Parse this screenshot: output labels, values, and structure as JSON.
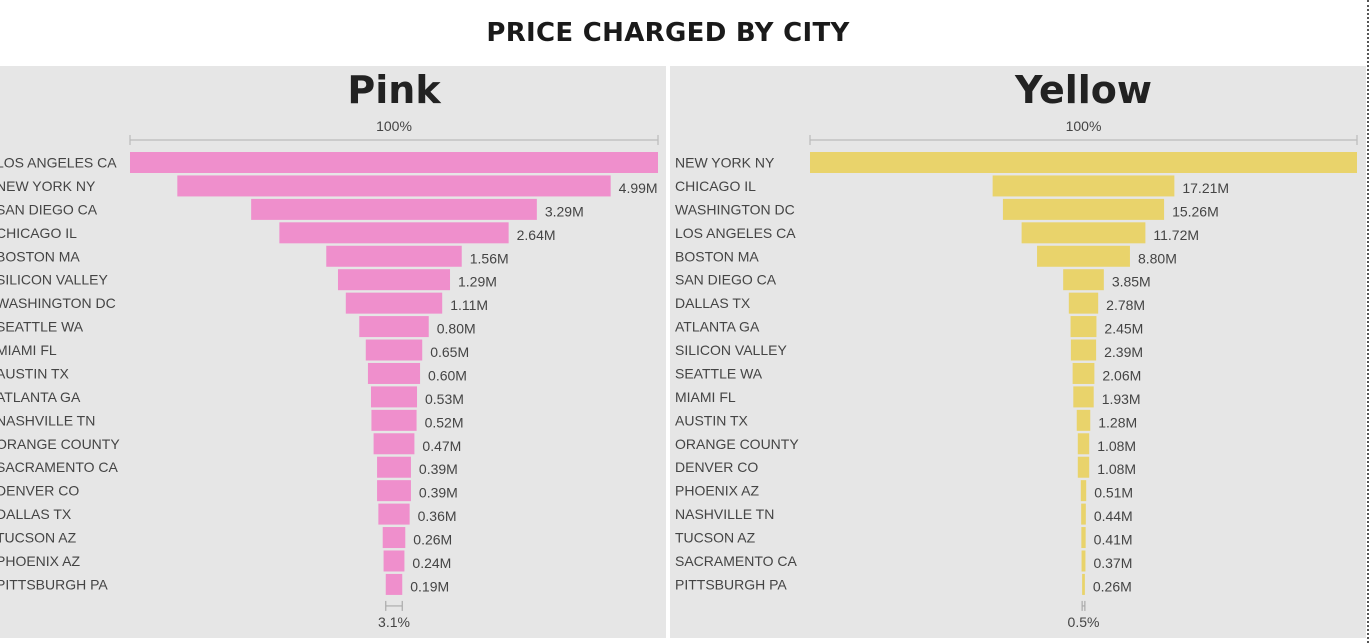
{
  "title": "PRICE CHARGED BY CITY",
  "chart_data": [
    {
      "type": "bar",
      "subtype": "funnel",
      "title": "Pink",
      "top_label": "100%",
      "bottom_label": "3.1%",
      "color": "#ef8fcc",
      "categories": [
        "LOS ANGELES CA",
        "NEW YORK NY",
        "SAN DIEGO CA",
        "CHICAGO IL",
        "BOSTON MA",
        "SILICON VALLEY",
        "WASHINGTON DC",
        "SEATTLE WA",
        "MIAMI FL",
        "AUSTIN TX",
        "ATLANTA GA",
        "NASHVILLE TN",
        "ORANGE COUNTY",
        "SACRAMENTO CA",
        "DENVER CO",
        "DALLAS TX",
        "TUCSON AZ",
        "PHOENIX AZ",
        "PITTSBURGH PA"
      ],
      "values": [
        6.08,
        4.99,
        3.29,
        2.64,
        1.56,
        1.29,
        1.11,
        0.8,
        0.65,
        0.6,
        0.53,
        0.52,
        0.47,
        0.39,
        0.39,
        0.36,
        0.26,
        0.24,
        0.19
      ],
      "value_labels": [
        "",
        "4.99M",
        "3.29M",
        "2.64M",
        "1.56M",
        "1.29M",
        "1.11M",
        "0.80M",
        "0.65M",
        "0.60M",
        "0.53M",
        "0.52M",
        "0.47M",
        "0.39M",
        "0.39M",
        "0.36M",
        "0.26M",
        "0.24M",
        "0.19M"
      ],
      "unit": "M"
    },
    {
      "type": "bar",
      "subtype": "funnel",
      "title": "Yellow",
      "top_label": "100%",
      "bottom_label": "0.5%",
      "color": "#e9d36b",
      "categories": [
        "NEW YORK NY",
        "CHICAGO IL",
        "WASHINGTON DC",
        "LOS ANGELES CA",
        "BOSTON MA",
        "SAN DIEGO CA",
        "DALLAS TX",
        "ATLANTA GA",
        "SILICON VALLEY",
        "SEATTLE WA",
        "MIAMI FL",
        "AUSTIN TX",
        "ORANGE COUNTY",
        "DENVER CO",
        "PHOENIX AZ",
        "NASHVILLE TN",
        "TUCSON AZ",
        "SACRAMENTO CA",
        "PITTSBURGH PA"
      ],
      "values": [
        51.8,
        17.21,
        15.26,
        11.72,
        8.8,
        3.85,
        2.78,
        2.45,
        2.39,
        2.06,
        1.93,
        1.28,
        1.08,
        1.08,
        0.51,
        0.44,
        0.41,
        0.37,
        0.26
      ],
      "value_labels": [
        "",
        "17.21M",
        "15.26M",
        "11.72M",
        "8.80M",
        "3.85M",
        "2.78M",
        "2.45M",
        "2.39M",
        "2.06M",
        "1.93M",
        "1.28M",
        "1.08M",
        "1.08M",
        "0.51M",
        "0.44M",
        "0.41M",
        "0.37M",
        "0.26M"
      ],
      "unit": "M"
    }
  ]
}
